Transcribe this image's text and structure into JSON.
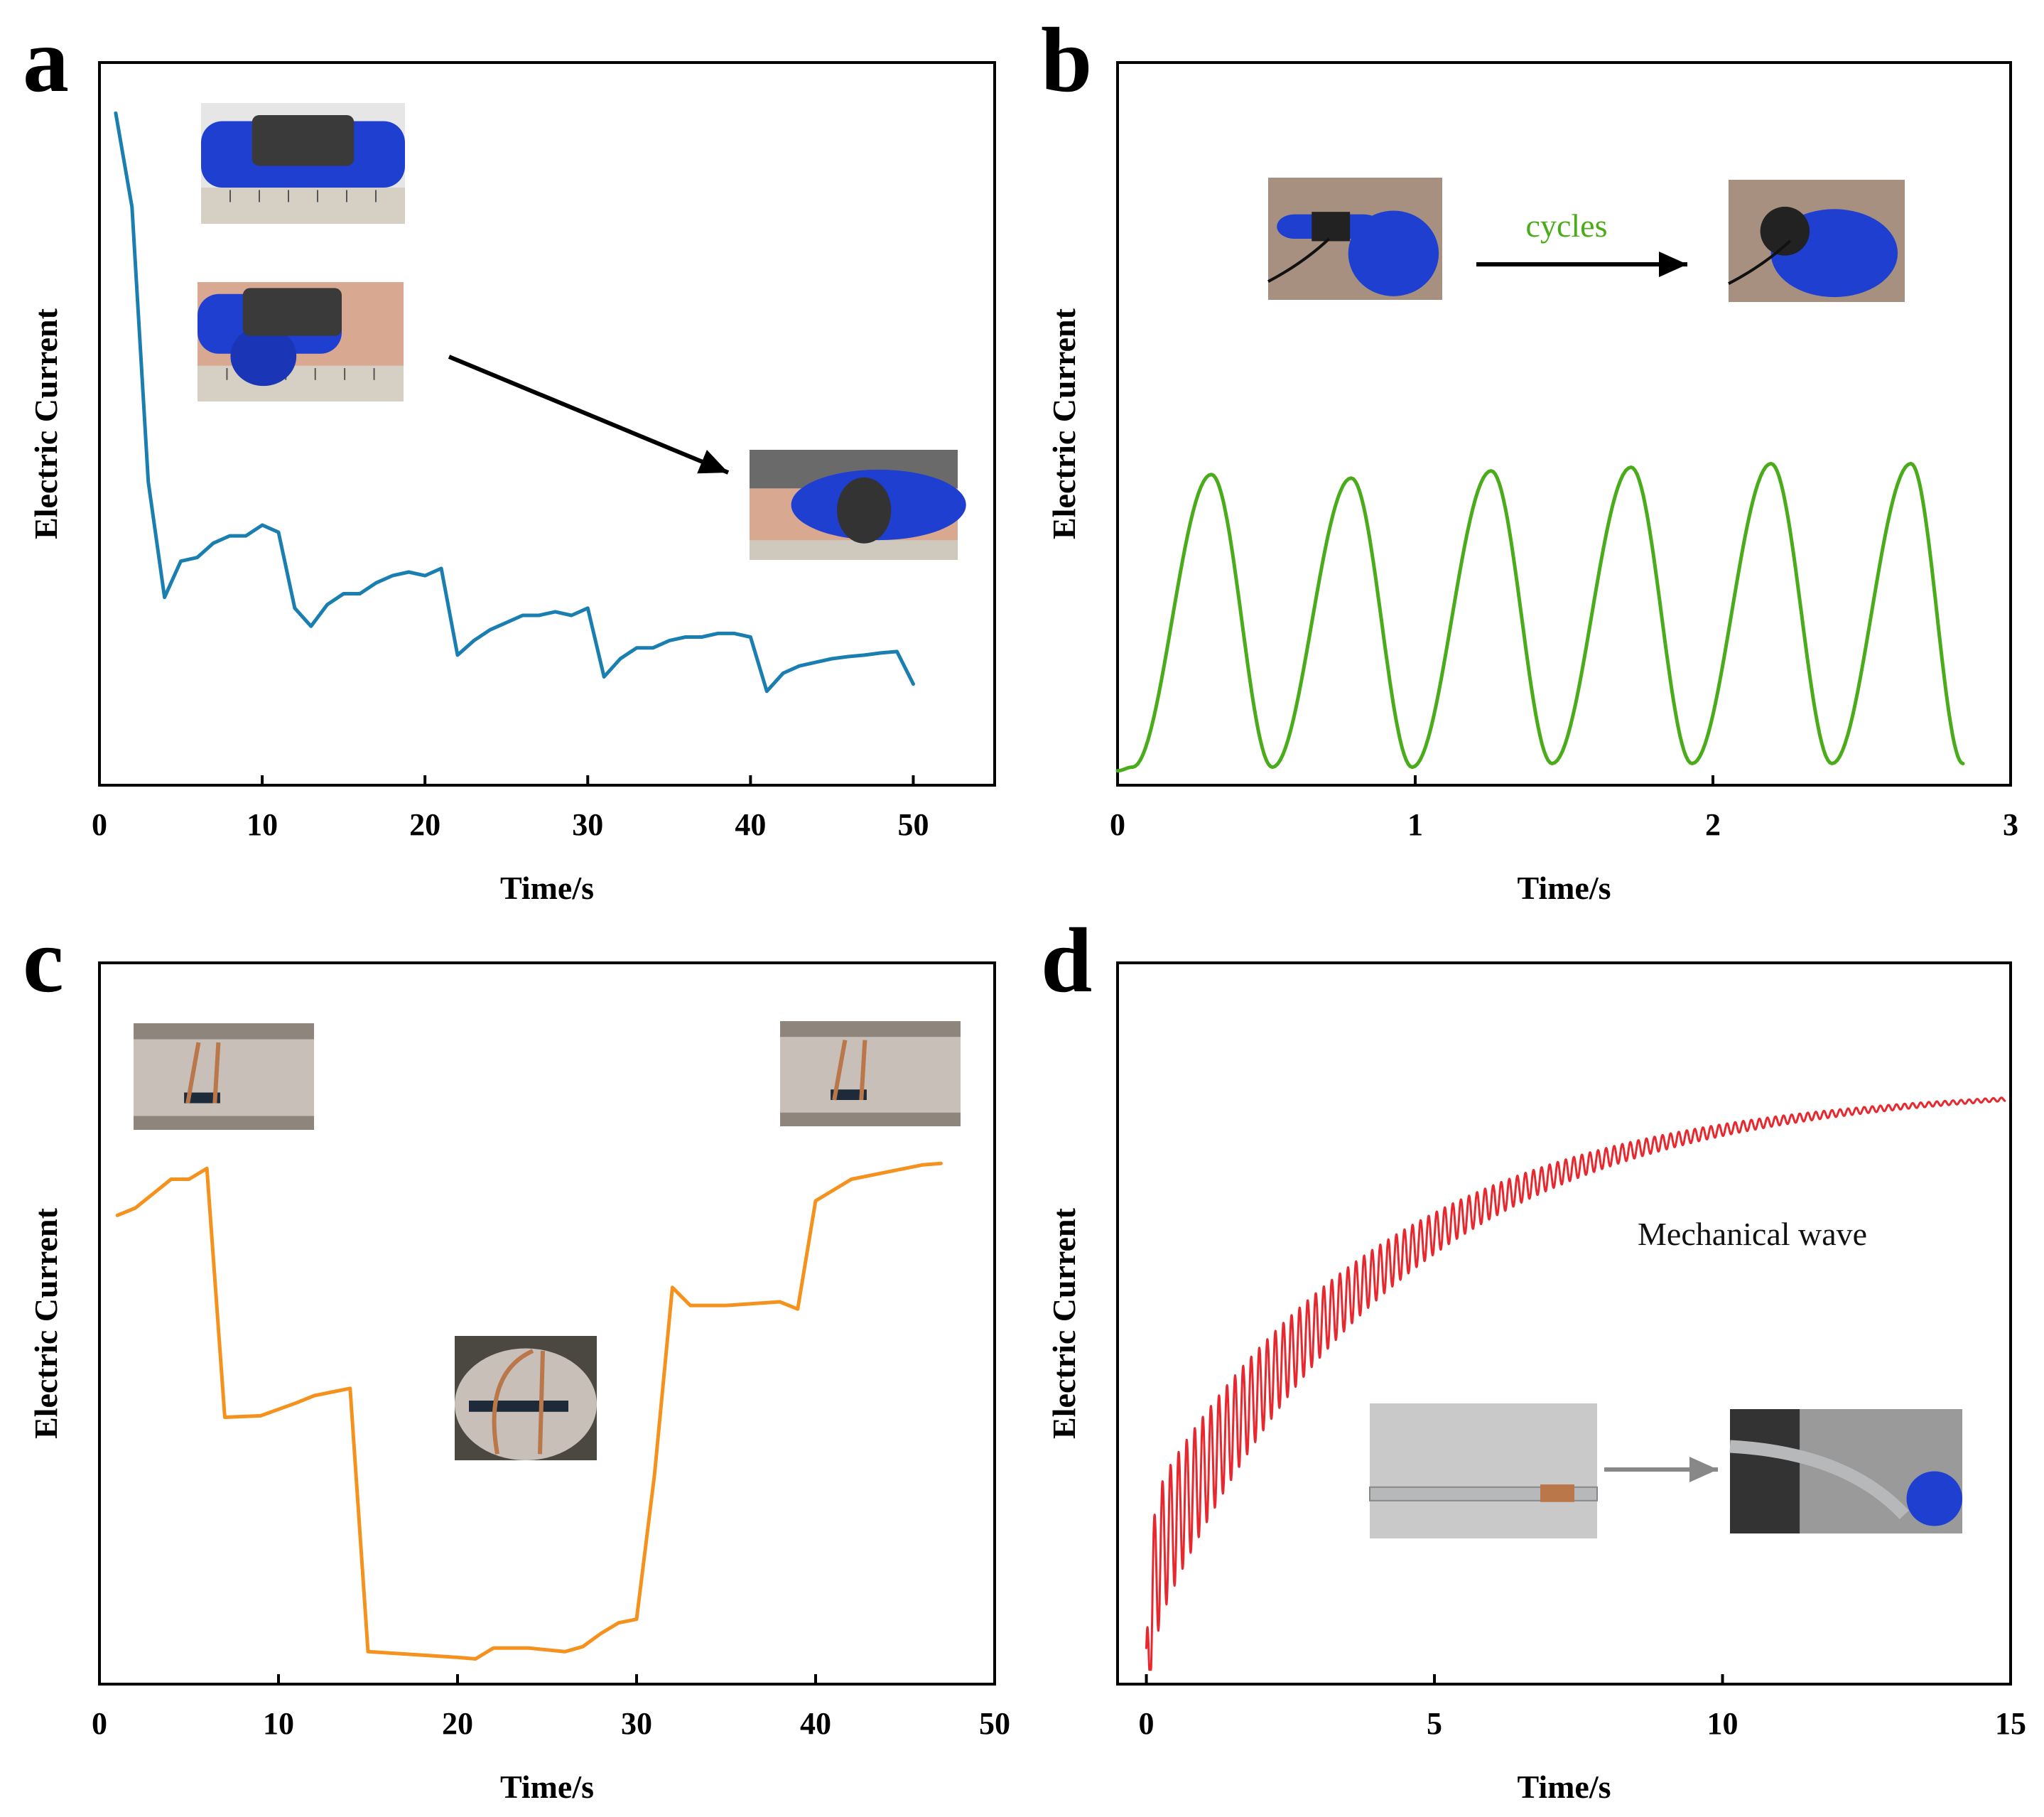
{
  "colors": {
    "a": "#1a7fb0",
    "b": "#4aac1a",
    "c": "#f5921e",
    "d": "#e8282e",
    "glove": "#1e3fd0",
    "skin": "#c8bfb8",
    "copper": "#b9774a",
    "metal": "#b6b8ba"
  },
  "chart_data": [
    {
      "id": "a",
      "panel_label": "a",
      "type": "line",
      "xlabel": "Time/s",
      "ylabel": "Electric Current",
      "xlim": [
        0,
        55
      ],
      "ylim": [
        0,
        1
      ],
      "xticks": [
        "0",
        "10",
        "20",
        "30",
        "40",
        "50"
      ],
      "xtick_values": [
        0,
        10,
        20,
        30,
        40,
        50
      ],
      "x": [
        1,
        2,
        3,
        4,
        5,
        6,
        7,
        8,
        9,
        10,
        11,
        12,
        13,
        14,
        15,
        16,
        17,
        18,
        19,
        20,
        21,
        22,
        23,
        24,
        25,
        26,
        27,
        28,
        29,
        30,
        31,
        32,
        33,
        34,
        35,
        36,
        37,
        38,
        39,
        40,
        41,
        42,
        43,
        44,
        45,
        46,
        47,
        48,
        49,
        50
      ],
      "y": [
        0.93,
        0.8,
        0.42,
        0.26,
        0.31,
        0.315,
        0.335,
        0.345,
        0.345,
        0.36,
        0.35,
        0.245,
        0.22,
        0.25,
        0.265,
        0.265,
        0.28,
        0.29,
        0.295,
        0.29,
        0.3,
        0.18,
        0.2,
        0.215,
        0.225,
        0.235,
        0.235,
        0.24,
        0.235,
        0.245,
        0.15,
        0.175,
        0.19,
        0.19,
        0.2,
        0.205,
        0.205,
        0.21,
        0.21,
        0.205,
        0.13,
        0.155,
        0.165,
        0.17,
        0.175,
        0.178,
        0.18,
        0.183,
        0.185,
        0.14
      ],
      "insets": [
        {
          "id": "a1",
          "type": "glove-flat"
        },
        {
          "id": "a2",
          "type": "glove-bend"
        },
        {
          "id": "a3",
          "type": "glove-fist"
        }
      ]
    },
    {
      "id": "b",
      "panel_label": "b",
      "type": "line",
      "xlabel": "Time/s",
      "ylabel": "Electric Current",
      "xlim": [
        0,
        3
      ],
      "ylim": [
        0,
        1
      ],
      "xticks": [
        "0",
        "1",
        "2",
        "3"
      ],
      "xtick_values": [
        0,
        1,
        2,
        3
      ],
      "annotation": "cycles",
      "cycle_peaks_x": [
        0.315,
        0.785,
        1.255,
        1.725,
        2.195,
        2.665
      ],
      "cycle_peaks_y": [
        0.43,
        0.425,
        0.435,
        0.44,
        0.445,
        0.445
      ],
      "cycle_troughs_x": [
        0.05,
        0.52,
        0.99,
        1.46,
        1.93,
        2.4,
        2.84
      ],
      "cycle_troughs_y": [
        0.025,
        0.025,
        0.025,
        0.03,
        0.03,
        0.03,
        0.03
      ],
      "insets": [
        {
          "id": "b1",
          "type": "finger-straight"
        },
        {
          "id": "b2",
          "type": "finger-bent"
        }
      ]
    },
    {
      "id": "c",
      "panel_label": "c",
      "type": "line",
      "xlabel": "Time/s",
      "ylabel": "Electric Current",
      "xlim": [
        0,
        50
      ],
      "ylim": [
        0,
        1
      ],
      "xticks": [
        "0",
        "10",
        "20",
        "30",
        "40",
        "50"
      ],
      "xtick_values": [
        0,
        10,
        20,
        30,
        40,
        50
      ],
      "x": [
        1,
        2,
        3,
        4,
        5,
        6,
        7,
        9,
        11,
        12,
        14,
        15,
        20,
        21,
        22,
        24,
        26,
        27,
        28,
        29,
        30,
        31,
        32,
        33,
        35,
        38,
        39,
        40,
        42,
        44,
        46,
        47
      ],
      "y": [
        0.65,
        0.66,
        0.68,
        0.7,
        0.7,
        0.715,
        0.37,
        0.372,
        0.39,
        0.4,
        0.41,
        0.045,
        0.037,
        0.035,
        0.05,
        0.05,
        0.045,
        0.052,
        0.07,
        0.085,
        0.09,
        0.29,
        0.55,
        0.525,
        0.525,
        0.53,
        0.52,
        0.67,
        0.7,
        0.71,
        0.72,
        0.722
      ],
      "insets": [
        {
          "id": "c1",
          "type": "arm-straight"
        },
        {
          "id": "c2",
          "type": "arm-bent"
        },
        {
          "id": "c3",
          "type": "arm-straight"
        }
      ]
    },
    {
      "id": "d",
      "panel_label": "d",
      "type": "line",
      "xlabel": "Time/s",
      "ylabel": "Electric Current",
      "xlim": [
        -0.5,
        15
      ],
      "ylim": [
        0,
        1
      ],
      "xticks": [
        "0",
        "5",
        "10",
        "15"
      ],
      "xtick_values": [
        0,
        5,
        10,
        15
      ],
      "annotation": "Mechanical wave",
      "model": "damped oscillation around exponential rise",
      "y_start": 0.05,
      "y_plateau": 0.83,
      "time_constant_s": 4.2,
      "oscillation_period_s": 0.14,
      "initial_amplitude": 0.2,
      "amplitude_decay_s": 4.0,
      "insets": [
        {
          "id": "d1",
          "type": "ruler-flat"
        },
        {
          "id": "d2",
          "type": "ruler-bent"
        }
      ]
    }
  ]
}
